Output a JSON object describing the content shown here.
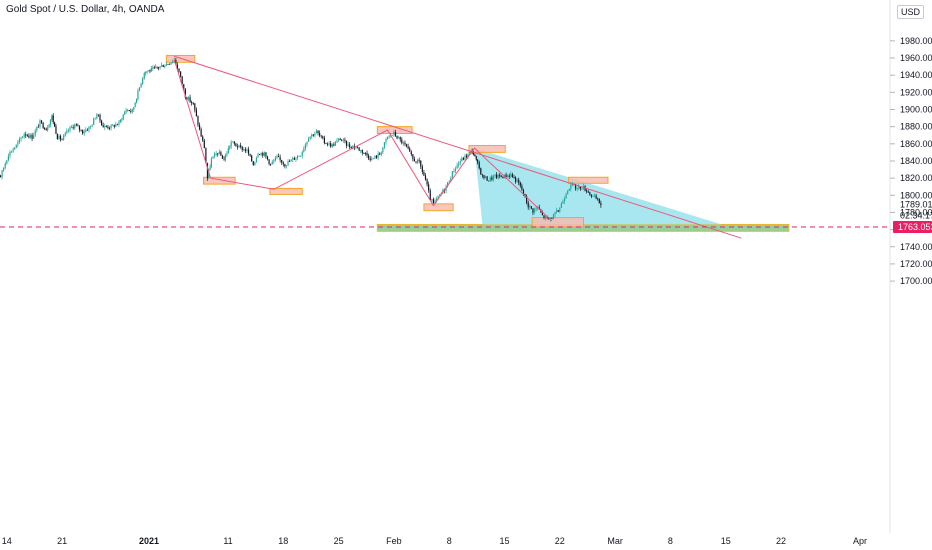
{
  "header": {
    "symbol_title": "Gold Spot / U.S. Dollar, 4h, OANDA",
    "currency": "USD"
  },
  "colors": {
    "bull_candle": "#26a69a",
    "bear_candle": "#131722",
    "trendline": "#f0557a",
    "zone_box_fill": "#f8b9b0",
    "zone_box_border": "#f5a623",
    "triangle_fill": "#99e3ec",
    "support_fill": "#7fc98b",
    "support_border": "#e5b833",
    "support_line": "#e91e63",
    "price_label_bg": "#e91e63"
  },
  "chart_data": {
    "type": "candlestick",
    "title": "Gold Spot / U.S. Dollar, 4h, OANDA",
    "y_unit": "USD",
    "ylim": [
      1685,
      1995
    ],
    "y_ticks": [
      "1980.000",
      "1960.000",
      "1940.000",
      "1920.000",
      "1900.000",
      "1880.000",
      "1860.000",
      "1840.000",
      "1820.000",
      "1800.000",
      "1780.000",
      "1760.000",
      "1740.000",
      "1720.000",
      "1700.000"
    ],
    "x_ticks": [
      "14",
      "21",
      "2021",
      "11",
      "18",
      "25",
      "Feb",
      "8",
      "15",
      "22",
      "Mar",
      "8",
      "15",
      "22",
      "Apr"
    ],
    "x_tick_days": [
      -18,
      -11,
      0,
      10,
      17,
      24,
      31,
      38,
      45,
      52,
      59,
      66,
      73,
      80,
      90
    ],
    "price_path": [
      {
        "day": -20.0,
        "price": 1840
      },
      {
        "day": -19.3,
        "price": 1828
      },
      {
        "day": -18.8,
        "price": 1822
      },
      {
        "day": -17.8,
        "price": 1848
      },
      {
        "day": -16.8,
        "price": 1858
      },
      {
        "day": -15.8,
        "price": 1872
      },
      {
        "day": -14.8,
        "price": 1868
      },
      {
        "day": -13.8,
        "price": 1885
      },
      {
        "day": -13.0,
        "price": 1877
      },
      {
        "day": -12.3,
        "price": 1892
      },
      {
        "day": -11.6,
        "price": 1868
      },
      {
        "day": -11.0,
        "price": 1865
      },
      {
        "day": -10.2,
        "price": 1876
      },
      {
        "day": -9.4,
        "price": 1882
      },
      {
        "day": -8.4,
        "price": 1874
      },
      {
        "day": -7.4,
        "price": 1880
      },
      {
        "day": -6.6,
        "price": 1895
      },
      {
        "day": -5.8,
        "price": 1880
      },
      {
        "day": -4.8,
        "price": 1880
      },
      {
        "day": -3.8,
        "price": 1884
      },
      {
        "day": -2.9,
        "price": 1900
      },
      {
        "day": -2.1,
        "price": 1898
      },
      {
        "day": -1.4,
        "price": 1920
      },
      {
        "day": -0.6,
        "price": 1944
      },
      {
        "day": 0.3,
        "price": 1946
      },
      {
        "day": 1.4,
        "price": 1950
      },
      {
        "day": 2.4,
        "price": 1954
      },
      {
        "day": 3.2,
        "price": 1958
      },
      {
        "day": 3.8,
        "price": 1944
      },
      {
        "day": 4.6,
        "price": 1916
      },
      {
        "day": 5.6,
        "price": 1906
      },
      {
        "day": 6.4,
        "price": 1876
      },
      {
        "day": 7.0,
        "price": 1856
      },
      {
        "day": 7.4,
        "price": 1820
      },
      {
        "day": 7.9,
        "price": 1842
      },
      {
        "day": 8.7,
        "price": 1850
      },
      {
        "day": 9.5,
        "price": 1842
      },
      {
        "day": 10.4,
        "price": 1862
      },
      {
        "day": 11.4,
        "price": 1856
      },
      {
        "day": 12.4,
        "price": 1852
      },
      {
        "day": 13.2,
        "price": 1836
      },
      {
        "day": 13.8,
        "price": 1850
      },
      {
        "day": 14.6,
        "price": 1848
      },
      {
        "day": 15.4,
        "price": 1836
      },
      {
        "day": 16.2,
        "price": 1844
      },
      {
        "day": 17.2,
        "price": 1836
      },
      {
        "day": 18.2,
        "price": 1842
      },
      {
        "day": 19.2,
        "price": 1848
      },
      {
        "day": 20.2,
        "price": 1868
      },
      {
        "day": 21.2,
        "price": 1874
      },
      {
        "day": 22.2,
        "price": 1862
      },
      {
        "day": 23.2,
        "price": 1858
      },
      {
        "day": 24.2,
        "price": 1866
      },
      {
        "day": 25.2,
        "price": 1858
      },
      {
        "day": 26.2,
        "price": 1856
      },
      {
        "day": 27.2,
        "price": 1850
      },
      {
        "day": 28.2,
        "price": 1842
      },
      {
        "day": 29.2,
        "price": 1848
      },
      {
        "day": 30.2,
        "price": 1868
      },
      {
        "day": 31.0,
        "price": 1872
      },
      {
        "day": 31.8,
        "price": 1864
      },
      {
        "day": 32.6,
        "price": 1856
      },
      {
        "day": 33.4,
        "price": 1842
      },
      {
        "day": 34.2,
        "price": 1838
      },
      {
        "day": 35.0,
        "price": 1818
      },
      {
        "day": 35.6,
        "price": 1796
      },
      {
        "day": 36.0,
        "price": 1790
      },
      {
        "day": 36.8,
        "price": 1800
      },
      {
        "day": 37.6,
        "price": 1810
      },
      {
        "day": 38.6,
        "price": 1830
      },
      {
        "day": 39.4,
        "price": 1840
      },
      {
        "day": 40.2,
        "price": 1846
      },
      {
        "day": 40.9,
        "price": 1852
      },
      {
        "day": 41.6,
        "price": 1836
      },
      {
        "day": 42.2,
        "price": 1822
      },
      {
        "day": 43.0,
        "price": 1818
      },
      {
        "day": 43.8,
        "price": 1822
      },
      {
        "day": 44.8,
        "price": 1822
      },
      {
        "day": 45.8,
        "price": 1824
      },
      {
        "day": 46.8,
        "price": 1814
      },
      {
        "day": 47.4,
        "price": 1802
      },
      {
        "day": 48.0,
        "price": 1788
      },
      {
        "day": 48.6,
        "price": 1782
      },
      {
        "day": 49.2,
        "price": 1786
      },
      {
        "day": 49.8,
        "price": 1776
      },
      {
        "day": 50.6,
        "price": 1772
      },
      {
        "day": 51.2,
        "price": 1776
      },
      {
        "day": 51.8,
        "price": 1782
      },
      {
        "day": 52.4,
        "price": 1794
      },
      {
        "day": 53.0,
        "price": 1808
      },
      {
        "day": 53.6,
        "price": 1812
      },
      {
        "day": 54.2,
        "price": 1808
      },
      {
        "day": 54.8,
        "price": 1810
      },
      {
        "day": 55.4,
        "price": 1806
      },
      {
        "day": 56.0,
        "price": 1800
      },
      {
        "day": 56.6,
        "price": 1796
      },
      {
        "day": 57.2,
        "price": 1789
      }
    ],
    "trendline_main": {
      "start": {
        "day": 3.2,
        "price": 1962
      },
      "end": {
        "day": 75.0,
        "price": 1750
      }
    },
    "zigzag": [
      {
        "day": 3.2,
        "price": 1958
      },
      {
        "day": 7.8,
        "price": 1820
      },
      {
        "day": 15.8,
        "price": 1807
      },
      {
        "day": 30.2,
        "price": 1876
      },
      {
        "day": 36.0,
        "price": 1788
      },
      {
        "day": 41.2,
        "price": 1855
      },
      {
        "day": 51.0,
        "price": 1770
      }
    ],
    "triangle": [
      {
        "day": 41.2,
        "price": 1855
      },
      {
        "day": 72.5,
        "price": 1766
      },
      {
        "day": 42.2,
        "price": 1766
      }
    ],
    "marker_boxes": [
      {
        "day_from": 2.2,
        "day_to": 5.8,
        "price_top": 1963,
        "price_bottom": 1955
      },
      {
        "day_from": 6.9,
        "day_to": 10.9,
        "price_top": 1821,
        "price_bottom": 1813
      },
      {
        "day_from": 15.3,
        "day_to": 19.4,
        "price_top": 1808,
        "price_bottom": 1801
      },
      {
        "day_from": 28.9,
        "day_to": 33.3,
        "price_top": 1880,
        "price_bottom": 1872
      },
      {
        "day_from": 34.8,
        "day_to": 38.5,
        "price_top": 1790,
        "price_bottom": 1782
      },
      {
        "day_from": 40.5,
        "day_to": 45.1,
        "price_top": 1858,
        "price_bottom": 1850
      },
      {
        "day_from": 53.1,
        "day_to": 58.1,
        "price_top": 1821,
        "price_bottom": 1814
      },
      {
        "day_from": 48.5,
        "day_to": 55.0,
        "price_top": 1774,
        "price_bottom": 1763
      }
    ],
    "support_zone": {
      "day_from": 28.9,
      "day_to": 81.0,
      "price_top": 1766,
      "price_bottom": 1758
    },
    "support_level": 1763.053,
    "price_scale_labels": {
      "last_price": "1789.010",
      "countdown": "02:34:17",
      "support_price": "1763.053"
    }
  }
}
